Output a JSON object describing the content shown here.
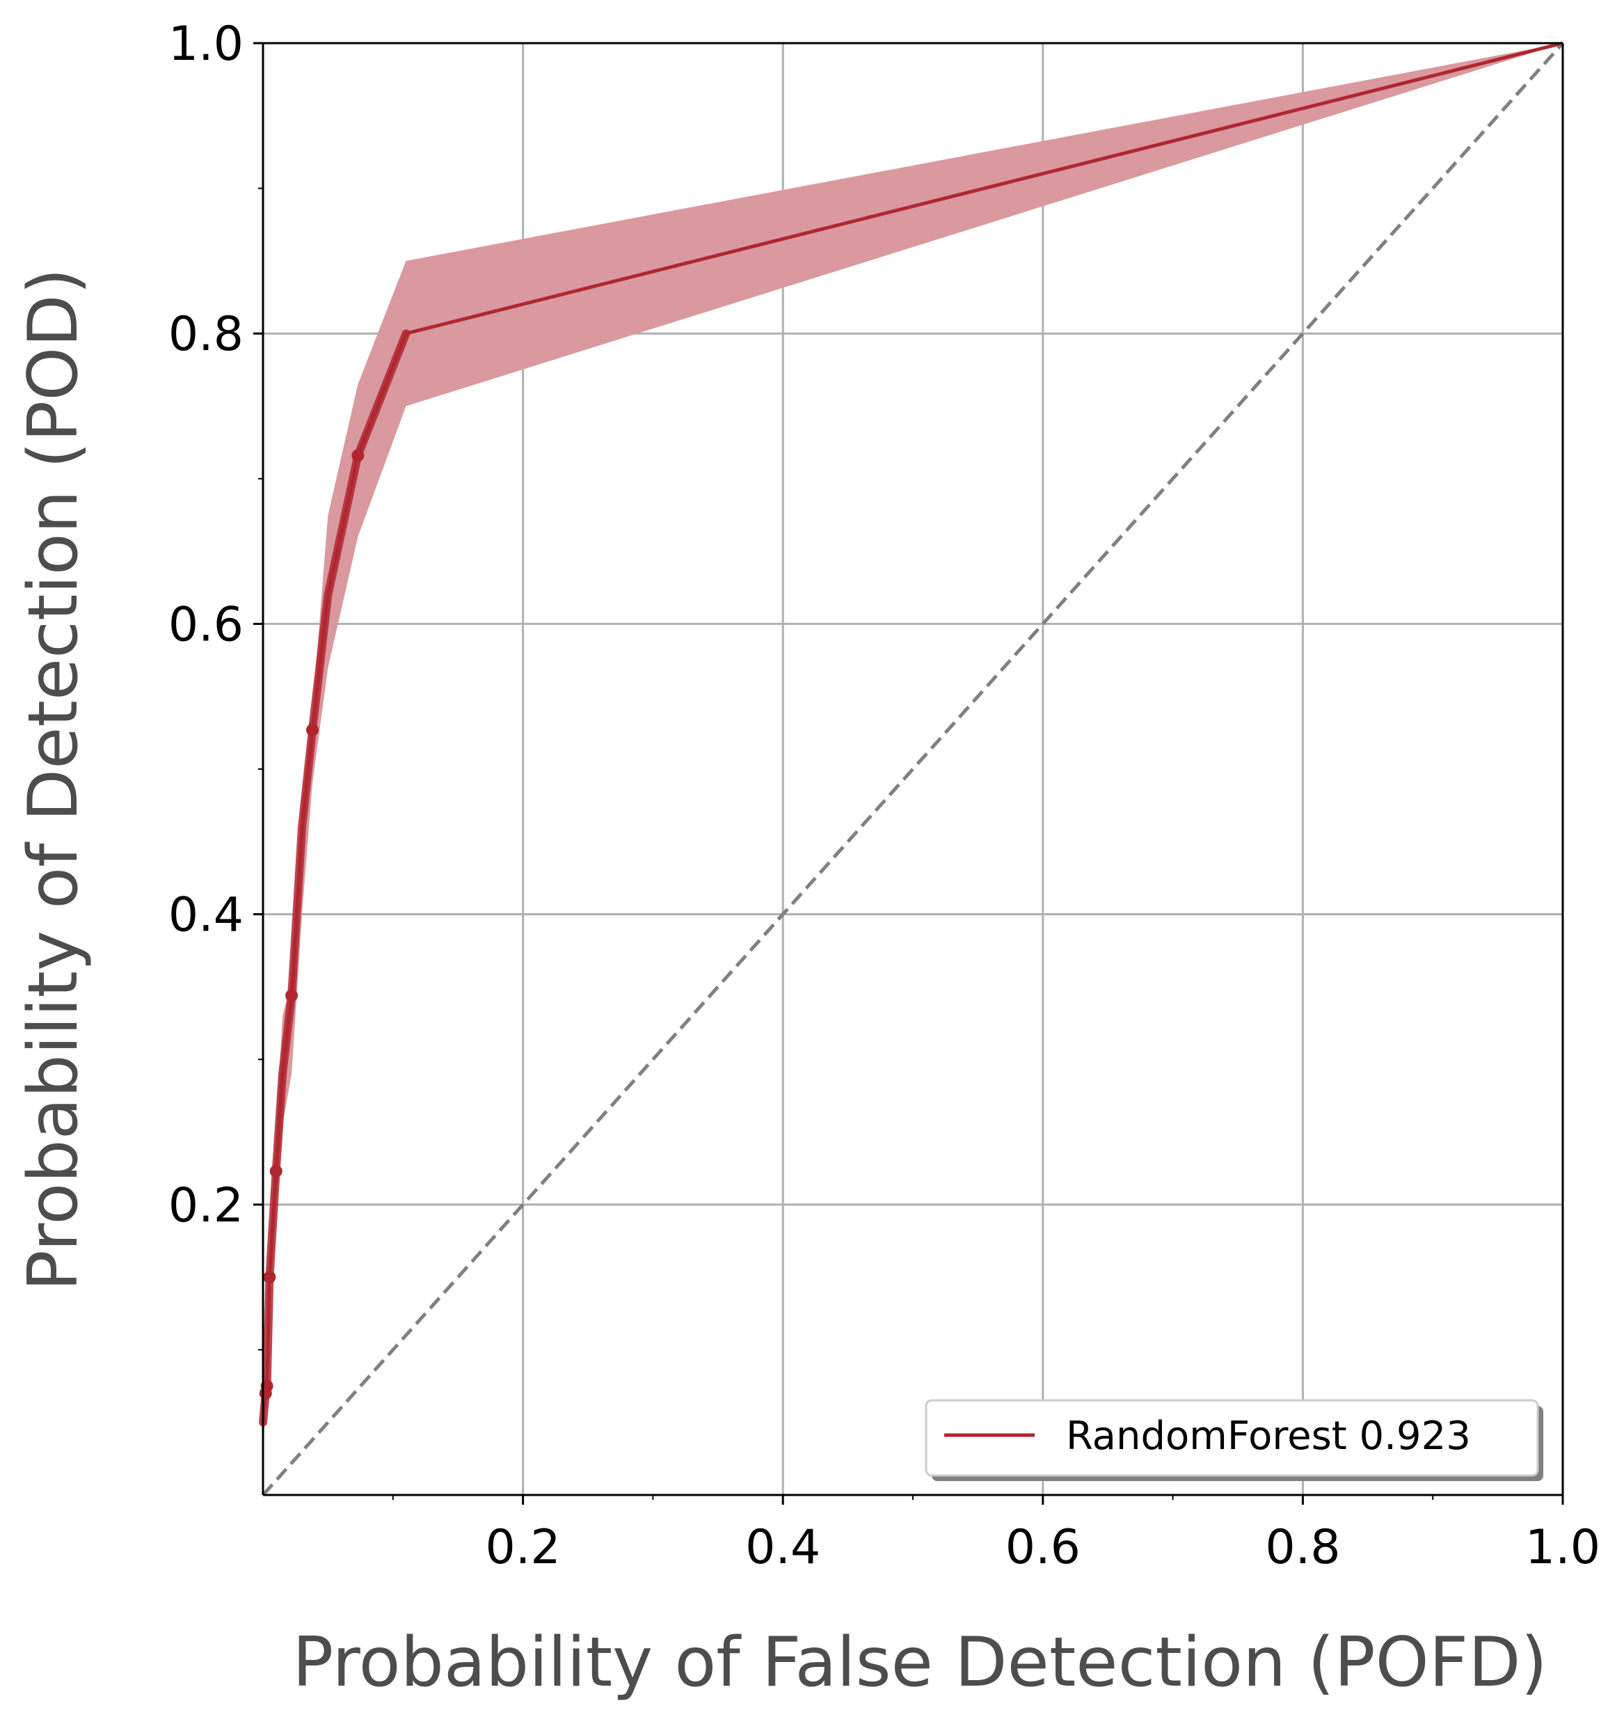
{
  "chart_data": {
    "type": "line",
    "xlabel": "Probability of False Detection (POFD)",
    "ylabel": "Probability of Detection (POD)",
    "xlim": [
      0,
      1
    ],
    "ylim": [
      0,
      1
    ],
    "x_ticks": [
      0.2,
      0.4,
      0.6,
      0.8,
      1.0
    ],
    "x_tick_labels": [
      "0.2",
      "0.4",
      "0.6",
      "0.8",
      "1.0"
    ],
    "y_ticks": [
      0.2,
      0.4,
      0.6,
      0.8,
      1.0
    ],
    "y_tick_labels": [
      "0.2",
      "0.4",
      "0.6",
      "0.8",
      "1.0"
    ],
    "x_minor_ticks": [
      0.1,
      0.3,
      0.5,
      0.7,
      0.9
    ],
    "y_minor_ticks": [
      0.1,
      0.3,
      0.5,
      0.7,
      0.9
    ],
    "grid": true,
    "legend_position": "bottom-right",
    "series": [
      {
        "name": "RandomForest 0.923",
        "color": "#b0262f",
        "x": [
          0.0,
          0.002,
          0.003,
          0.005,
          0.01,
          0.015,
          0.022,
          0.03,
          0.038,
          0.05,
          0.073,
          0.11,
          1.0
        ],
        "y": [
          0.05,
          0.07,
          0.075,
          0.15,
          0.223,
          0.29,
          0.344,
          0.46,
          0.527,
          0.62,
          0.716,
          0.8,
          1.0
        ],
        "y_lower": [
          0.03,
          0.06,
          0.065,
          0.13,
          0.2,
          0.255,
          0.29,
          0.4,
          0.49,
          0.57,
          0.66,
          0.75,
          1.0
        ],
        "y_upper": [
          0.07,
          0.08,
          0.09,
          0.17,
          0.25,
          0.33,
          0.355,
          0.48,
          0.54,
          0.675,
          0.765,
          0.85,
          1.0
        ],
        "markers_x": [
          0.002,
          0.003,
          0.005,
          0.01,
          0.022,
          0.038,
          0.073
        ],
        "markers_y": [
          0.07,
          0.075,
          0.15,
          0.223,
          0.344,
          0.527,
          0.716
        ]
      }
    ],
    "reference_line": {
      "x": [
        0,
        1
      ],
      "y": [
        0,
        1
      ],
      "style": "dashed",
      "color": "#808080"
    },
    "colors": {
      "band": "#d9999e",
      "grid": "#b0b0b0",
      "axis": "#000000"
    }
  }
}
